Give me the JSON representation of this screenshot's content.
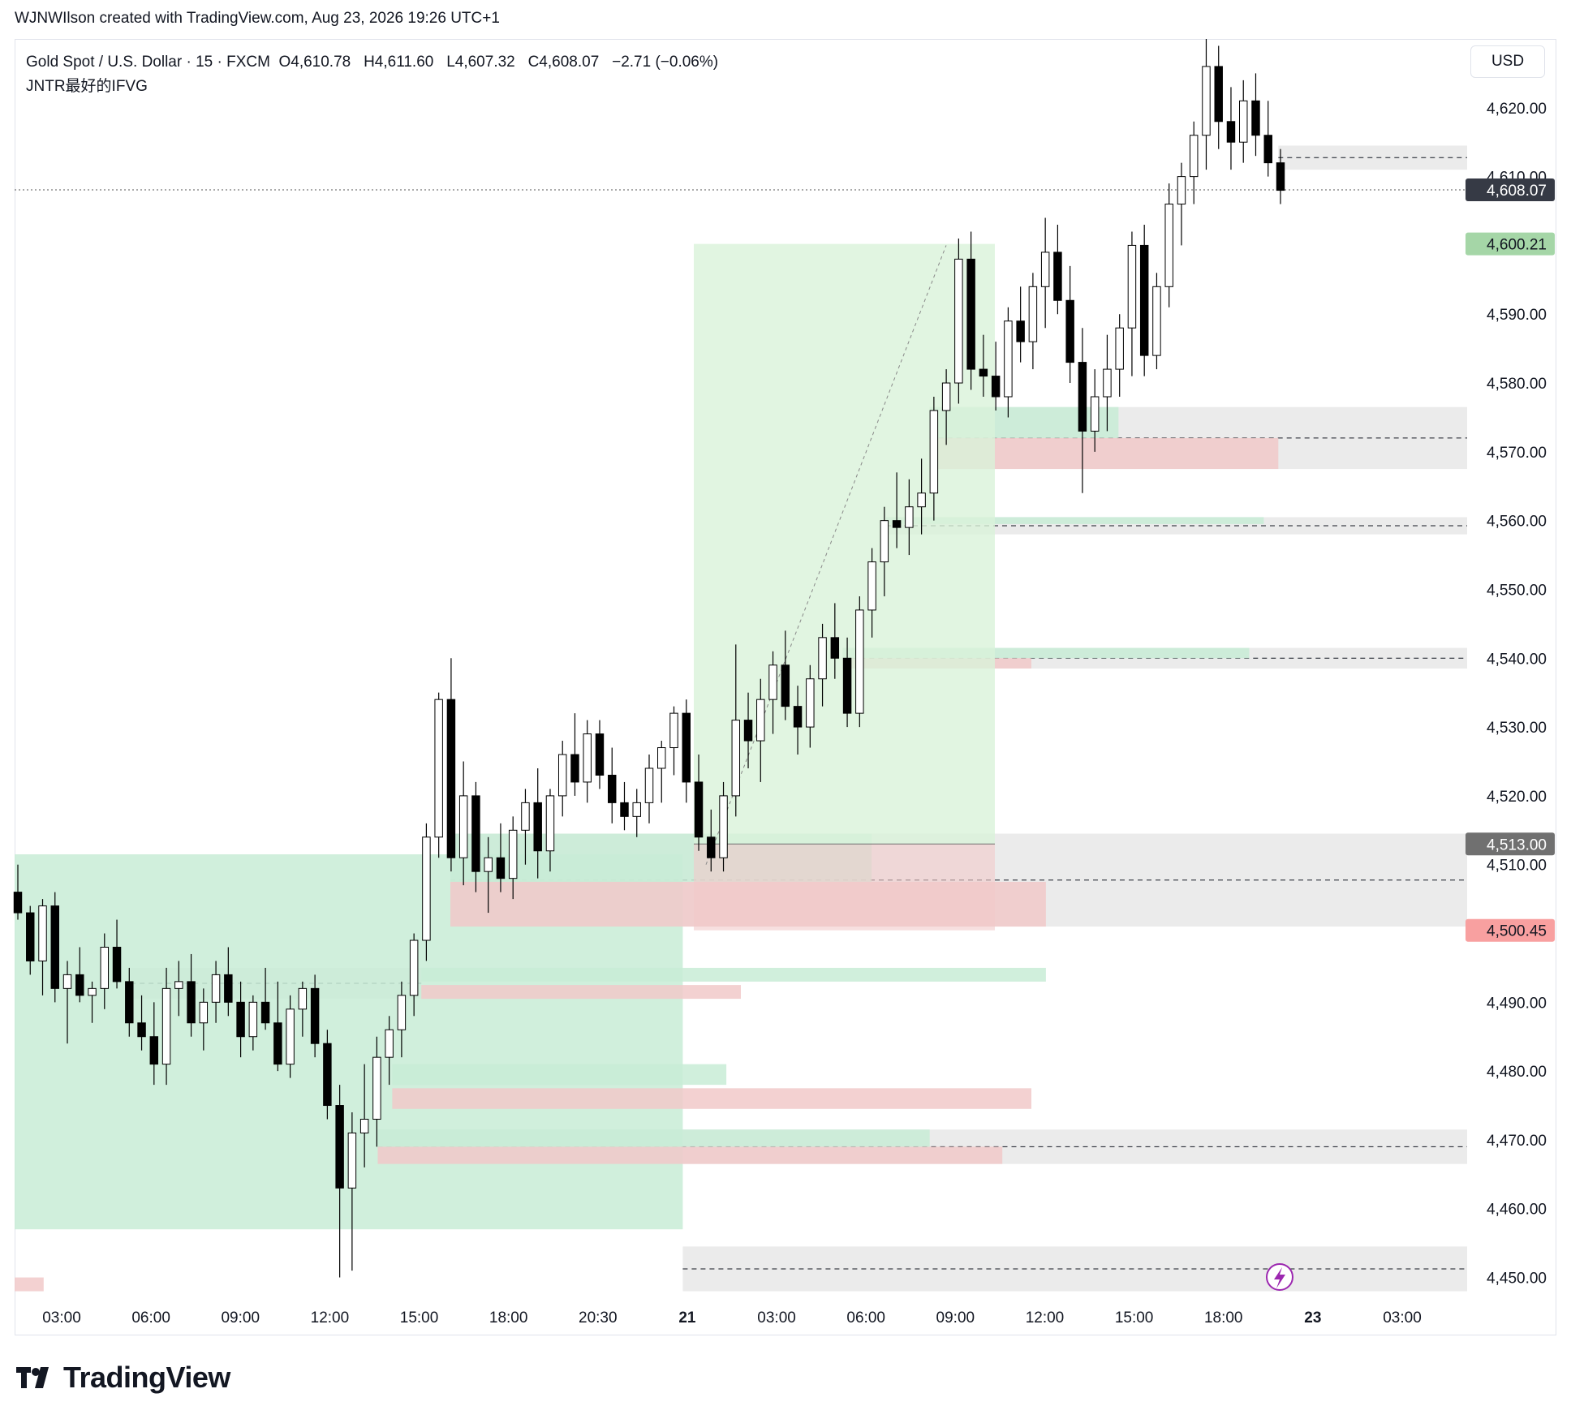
{
  "topbar": {
    "text": "WJNWIlson created with TradingView.com, Aug 23, 2026 19:26 UTC+1"
  },
  "legend": {
    "symbol_line": "Gold Spot / U.S. Dollar · 15 · FXCM",
    "open": "O4,610.78",
    "high": "H4,611.60",
    "low": "L4,607.32",
    "close": "C4,608.07",
    "change": "−2.71 (−0.06%)",
    "indicator": "JNTR最好的IFVG"
  },
  "currency_label": "USD",
  "brand": {
    "name": "TradingView"
  },
  "colors": {
    "up_candle": "#ffffff",
    "down_candle": "#000000",
    "bull_zone": "#c8ecd6",
    "bear_zone": "#f1c9c9",
    "neutral_zone": "#e6e6e6",
    "position_profit": "#d9f2d9",
    "price_tag_current": "#363a45",
    "price_tag_target": "#a5d6a7",
    "price_tag_stop": "#f8a0a0",
    "price_tag_entry": "#707070"
  },
  "chart_data": {
    "type": "candlestick",
    "symbol": "Gold Spot / U.S. Dollar",
    "interval": "15",
    "y_ticks": [
      4450,
      4460,
      4470,
      4480,
      4490,
      4500,
      4510,
      4520,
      4530,
      4540,
      4550,
      4560,
      4570,
      4580,
      4590,
      4600,
      4610,
      4620
    ],
    "y_tick_labels": [
      "4,450.00",
      "4,460.00",
      "4,470.00",
      "4,480.00",
      "4,490.00",
      "",
      "4,510.00",
      "4,520.00",
      "4,530.00",
      "4,540.00",
      "4,550.00",
      "4,560.00",
      "4,570.00",
      "4,580.00",
      "4,590.00",
      "",
      "4,610.00",
      "4,620.00"
    ],
    "ylim": [
      4447,
      4630
    ],
    "x_tick_labels": [
      "03:00",
      "06:00",
      "09:00",
      "12:00",
      "15:00",
      "18:00",
      "20:30",
      "21",
      "03:00",
      "06:00",
      "09:00",
      "12:00",
      "15:00",
      "18:00",
      "23",
      "03:00"
    ],
    "price_tags": [
      {
        "label": "4,608.07",
        "value": 4608.07,
        "kind": "current"
      },
      {
        "label": "4,600.21",
        "value": 4600.21,
        "kind": "target"
      },
      {
        "label": "4,513.00",
        "value": 4513.0,
        "kind": "entry"
      },
      {
        "label": "4,500.45",
        "value": 4500.45,
        "kind": "stop"
      }
    ],
    "current_price": 4608.07,
    "candles": [
      [
        4506,
        4510,
        4502,
        4503
      ],
      [
        4503,
        4504,
        4494,
        4496
      ],
      [
        4496,
        4505,
        4491,
        4504
      ],
      [
        4504,
        4506,
        4490,
        4492
      ],
      [
        4492,
        4496,
        4484,
        4494
      ],
      [
        4494,
        4498,
        4490,
        4491
      ],
      [
        4491,
        4493,
        4487,
        4492
      ],
      [
        4492,
        4500,
        4489,
        4498
      ],
      [
        4498,
        4502,
        4492,
        4493
      ],
      [
        4493,
        4495,
        4485,
        4487
      ],
      [
        4487,
        4491,
        4483,
        4485
      ],
      [
        4485,
        4490,
        4478,
        4481
      ],
      [
        4481,
        4495,
        4478,
        4492
      ],
      [
        4492,
        4496,
        4488,
        4493
      ],
      [
        4493,
        4497,
        4485,
        4487
      ],
      [
        4487,
        4492,
        4483,
        4490
      ],
      [
        4490,
        4496,
        4487,
        4494
      ],
      [
        4494,
        4498,
        4488,
        4490
      ],
      [
        4490,
        4493,
        4482,
        4485
      ],
      [
        4485,
        4491,
        4483,
        4490
      ],
      [
        4490,
        4495,
        4486,
        4487
      ],
      [
        4487,
        4493,
        4480,
        4481
      ],
      [
        4481,
        4491,
        4479,
        4489
      ],
      [
        4489,
        4493,
        4485,
        4492
      ],
      [
        4492,
        4494,
        4482,
        4484
      ],
      [
        4484,
        4486,
        4473,
        4475
      ],
      [
        4475,
        4478,
        4450,
        4463
      ],
      [
        4463,
        4474,
        4451,
        4471
      ],
      [
        4471,
        4481,
        4466,
        4473
      ],
      [
        4473,
        4485,
        4469,
        4482
      ],
      [
        4482,
        4488,
        4478,
        4486
      ],
      [
        4486,
        4493,
        4482,
        4491
      ],
      [
        4491,
        4500,
        4488,
        4499
      ],
      [
        4499,
        4516,
        4496,
        4514
      ],
      [
        4514,
        4535,
        4511,
        4534
      ],
      [
        4534,
        4540,
        4509,
        4511
      ],
      [
        4511,
        4525,
        4507,
        4520
      ],
      [
        4520,
        4522,
        4506,
        4509
      ],
      [
        4509,
        4514,
        4503,
        4511
      ],
      [
        4511,
        4516,
        4506,
        4508
      ],
      [
        4508,
        4517,
        4505,
        4515
      ],
      [
        4515,
        4521,
        4510,
        4519
      ],
      [
        4519,
        4524,
        4508,
        4512
      ],
      [
        4512,
        4521,
        4509,
        4520
      ],
      [
        4520,
        4528,
        4517,
        4526
      ],
      [
        4526,
        4532,
        4520,
        4522
      ],
      [
        4522,
        4531,
        4519,
        4529
      ],
      [
        4529,
        4531,
        4521,
        4523
      ],
      [
        4523,
        4527,
        4516,
        4519
      ],
      [
        4519,
        4522,
        4515,
        4517
      ],
      [
        4517,
        4521,
        4514,
        4519
      ],
      [
        4519,
        4526,
        4516,
        4524
      ],
      [
        4524,
        4528,
        4519,
        4527
      ],
      [
        4527,
        4533,
        4523,
        4532
      ],
      [
        4532,
        4534,
        4519,
        4522
      ],
      [
        4522,
        4526,
        4512,
        4514
      ],
      [
        4514,
        4518,
        4509,
        4511
      ],
      [
        4511,
        4522,
        4509,
        4520
      ],
      [
        4520,
        4542,
        4517,
        4531
      ],
      [
        4531,
        4535,
        4524,
        4528
      ],
      [
        4528,
        4537,
        4522,
        4534
      ],
      [
        4534,
        4541,
        4529,
        4539
      ],
      [
        4539,
        4544,
        4531,
        4533
      ],
      [
        4533,
        4536,
        4526,
        4530
      ],
      [
        4530,
        4539,
        4527,
        4537
      ],
      [
        4537,
        4545,
        4533,
        4543
      ],
      [
        4543,
        4548,
        4537,
        4540
      ],
      [
        4540,
        4543,
        4530,
        4532
      ],
      [
        4532,
        4549,
        4530,
        4547
      ],
      [
        4547,
        4556,
        4543,
        4554
      ],
      [
        4554,
        4562,
        4549,
        4560
      ],
      [
        4560,
        4567,
        4556,
        4559
      ],
      [
        4559,
        4566,
        4555,
        4562
      ],
      [
        4562,
        4569,
        4558,
        4564
      ],
      [
        4564,
        4578,
        4560,
        4576
      ],
      [
        4576,
        4582,
        4571,
        4580
      ],
      [
        4580,
        4601,
        4577,
        4598
      ],
      [
        4598,
        4602,
        4579,
        4582
      ],
      [
        4582,
        4587,
        4578,
        4581
      ],
      [
        4581,
        4586,
        4576,
        4578
      ],
      [
        4578,
        4591,
        4575,
        4589
      ],
      [
        4589,
        4594,
        4583,
        4586
      ],
      [
        4586,
        4596,
        4582,
        4594
      ],
      [
        4594,
        4604,
        4588,
        4599
      ],
      [
        4599,
        4603,
        4590,
        4592
      ],
      [
        4592,
        4597,
        4580,
        4583
      ],
      [
        4583,
        4588,
        4564,
        4573
      ],
      [
        4573,
        4582,
        4570,
        4578
      ],
      [
        4578,
        4587,
        4573,
        4582
      ],
      [
        4582,
        4590,
        4578,
        4588
      ],
      [
        4588,
        4602,
        4581,
        4600
      ],
      [
        4600,
        4603,
        4581,
        4584
      ],
      [
        4584,
        4596,
        4582,
        4594
      ],
      [
        4594,
        4609,
        4591,
        4606
      ],
      [
        4606,
        4612,
        4600,
        4610
      ],
      [
        4610,
        4618,
        4606,
        4616
      ],
      [
        4616,
        4630,
        4611,
        4626
      ],
      [
        4626,
        4629,
        4614,
        4618
      ],
      [
        4618,
        4623,
        4611,
        4615
      ],
      [
        4615,
        4624,
        4612,
        4621
      ],
      [
        4621,
        4625,
        4613,
        4616
      ],
      [
        4616,
        4621,
        4610,
        4612
      ],
      [
        4612,
        4614,
        4606,
        4608
      ]
    ],
    "zones": [
      {
        "kind": "bull",
        "from": 4457,
        "to": 4511.5,
        "x0": 0.0,
        "x1": 0.46
      },
      {
        "kind": "bear",
        "from": 4450,
        "to": 4448,
        "x0": 0.0,
        "x1": 0.02
      },
      {
        "kind": "neutral",
        "from": 4448,
        "to": 4454.5,
        "x0": 0.46,
        "x1": 1.0
      },
      {
        "kind": "neutral",
        "from": 4466.5,
        "to": 4471.5,
        "x0": 0.25,
        "x1": 1.0
      },
      {
        "kind": "bull",
        "from": 4469,
        "to": 4471.5,
        "x0": 0.25,
        "x1": 0.63
      },
      {
        "kind": "bear",
        "from": 4466.5,
        "to": 4469,
        "x0": 0.25,
        "x1": 0.68
      },
      {
        "kind": "bull",
        "from": 4478,
        "to": 4481,
        "x0": 0.26,
        "x1": 0.49
      },
      {
        "kind": "bear",
        "from": 4474.5,
        "to": 4477.5,
        "x0": 0.26,
        "x1": 0.7
      },
      {
        "kind": "bull",
        "from": 4493,
        "to": 4495,
        "x0": 0.28,
        "x1": 0.71
      },
      {
        "kind": "bear",
        "from": 4490.5,
        "to": 4492.5,
        "x0": 0.28,
        "x1": 0.5
      },
      {
        "kind": "neutral",
        "from": 4490.5,
        "to": 4495,
        "x0": 0.08,
        "x1": 0.28
      },
      {
        "kind": "neutral",
        "from": 4501,
        "to": 4514.5,
        "x0": 0.3,
        "x1": 1.0
      },
      {
        "kind": "bull",
        "from": 4507.5,
        "to": 4514.5,
        "x0": 0.3,
        "x1": 0.59
      },
      {
        "kind": "bear",
        "from": 4501,
        "to": 4507.5,
        "x0": 0.3,
        "x1": 0.71
      },
      {
        "kind": "neutral",
        "from": 4538.5,
        "to": 4541.5,
        "x0": 0.57,
        "x1": 1.0
      },
      {
        "kind": "bull",
        "from": 4540,
        "to": 4541.5,
        "x0": 0.57,
        "x1": 0.85
      },
      {
        "kind": "bear",
        "from": 4538.5,
        "to": 4540,
        "x0": 0.57,
        "x1": 0.7
      },
      {
        "kind": "neutral",
        "from": 4558,
        "to": 4560.5,
        "x0": 0.6,
        "x1": 1.0
      },
      {
        "kind": "bull",
        "from": 4559.5,
        "to": 4560.5,
        "x0": 0.6,
        "x1": 0.86
      },
      {
        "kind": "neutral",
        "from": 4567.5,
        "to": 4576.5,
        "x0": 0.63,
        "x1": 1.0
      },
      {
        "kind": "bull",
        "from": 4572,
        "to": 4576.5,
        "x0": 0.63,
        "x1": 0.76
      },
      {
        "kind": "bear",
        "from": 4567.5,
        "to": 4572,
        "x0": 0.63,
        "x1": 0.87
      },
      {
        "kind": "neutral",
        "from": 4611,
        "to": 4614.5,
        "x0": 0.87,
        "x1": 1.0
      }
    ],
    "position": {
      "entry": 4513.0,
      "target": 4600.21,
      "stop": 4500.45
    }
  }
}
